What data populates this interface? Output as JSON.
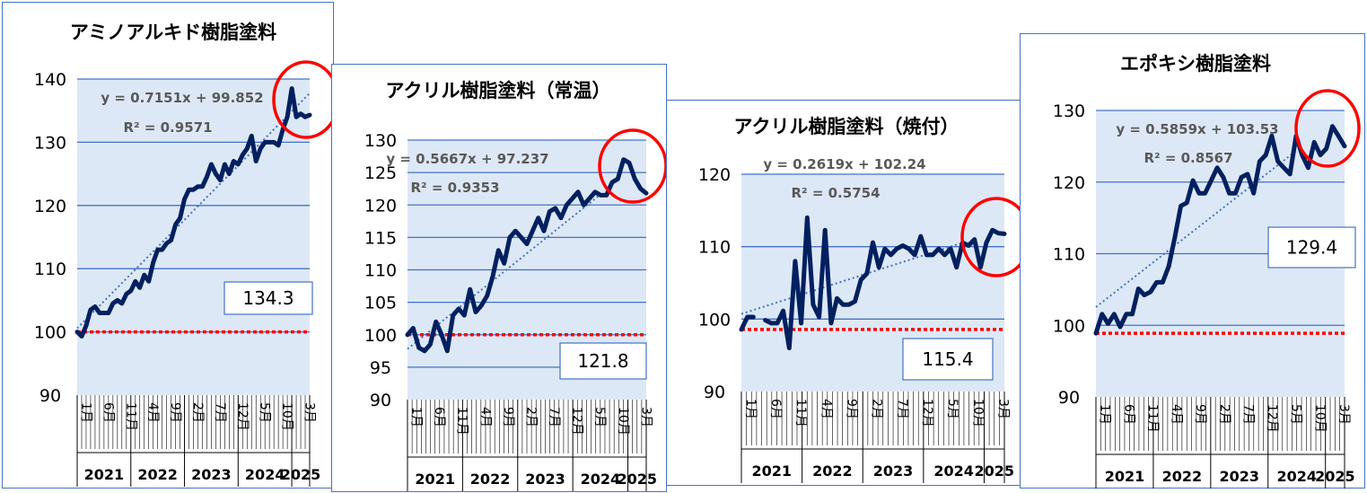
{
  "charts": [
    {
      "title": "アミノアルキド樹脂塗料",
      "yticks": [
        "140",
        "130",
        "120",
        "110",
        "100",
        "90"
      ],
      "months": [
        "1月",
        "6月",
        "11月",
        "4月",
        "9月",
        "2月",
        "7月",
        "12月",
        "5月",
        "10月",
        "3月"
      ],
      "years": [
        "2021",
        "2022",
        "2023",
        "2024",
        "2025"
      ],
      "equation": "y = 0.7151x + 99.852",
      "r2": "R² = 0.9571",
      "value_label": "134.3"
    },
    {
      "title": "アクリル樹脂塗料（常温）",
      "yticks": [
        "130",
        "125",
        "120",
        "115",
        "110",
        "105",
        "100",
        "95",
        "90"
      ],
      "months": [
        "1月",
        "6月",
        "11月",
        "4月",
        "9月",
        "2月",
        "7月",
        "12月",
        "5月",
        "10月",
        "3月"
      ],
      "years": [
        "2021",
        "2022",
        "2023",
        "2024",
        "2025"
      ],
      "equation": "y = 0.5667x + 97.237",
      "r2": "R² = 0.9353",
      "value_label": "121.8"
    },
    {
      "title": "アクリル樹脂塗料（焼付）",
      "yticks": [
        "120",
        "110",
        "100",
        "90"
      ],
      "months": [
        "1月",
        "6月",
        "11月",
        "4月",
        "9月",
        "2月",
        "7月",
        "12月",
        "5月",
        "10月",
        "3月"
      ],
      "years": [
        "2021",
        "2022",
        "2023",
        "2024",
        "2025"
      ],
      "equation": "y = 0.2619x + 102.24",
      "r2": "R² = 0.5754",
      "value_label": "115.4"
    },
    {
      "title": "エポキシ樹脂塗料",
      "yticks": [
        "130",
        "120",
        "110",
        "100",
        "90"
      ],
      "months": [
        "1月",
        "6月",
        "11月",
        "4月",
        "9月",
        "2月",
        "7月",
        "12月",
        "5月",
        "10月",
        "3月"
      ],
      "years": [
        "2021",
        "2022",
        "2023",
        "2024",
        "2025"
      ],
      "equation": "y = 0.5859x + 103.53",
      "r2": "R² = 0.8567",
      "value_label": "129.4"
    }
  ],
  "chart_data": [
    {
      "type": "line",
      "title": "アミノアルキド樹脂塗料",
      "x_start": "2021-01",
      "x_end": "2025-04",
      "ylim": [
        90,
        140
      ],
      "series": [
        {
          "values": [
            100,
            99.3,
            101,
            103.5,
            104,
            103,
            103,
            103,
            104.5,
            105,
            104.5,
            106,
            106.5,
            108,
            107,
            109,
            108,
            111,
            113,
            113,
            114,
            114.5,
            117,
            118,
            121,
            122.5,
            122.5,
            123,
            123,
            124.5,
            126.5,
            125,
            124,
            126.5,
            125,
            127,
            126.5,
            128,
            129,
            131,
            127,
            129,
            130,
            130,
            130,
            129.5,
            132,
            134,
            138.5,
            134,
            134.5,
            134,
            134.3
          ]
        }
      ],
      "trendline": {
        "slope": 0.7151,
        "intercept": 99.852
      },
      "baseline": 100,
      "colors": {
        "line": "#002060",
        "trend": "#4472c4",
        "baseline": "#ff0000",
        "highlight": "#ff0000",
        "plot_bg": "#dde8f6"
      }
    },
    {
      "type": "line",
      "title": "アクリル樹脂塗料（常温）",
      "x_start": "2021-01",
      "x_end": "2025-04",
      "ylim": [
        90,
        130
      ],
      "series": [
        {
          "values": [
            100,
            101,
            98,
            97.5,
            98.5,
            102,
            100,
            97.5,
            103,
            104,
            103,
            107,
            103.5,
            104.5,
            106,
            109,
            113,
            111,
            115,
            116,
            115,
            114,
            116,
            118,
            116,
            119,
            119.5,
            118,
            120,
            121,
            122,
            120,
            121,
            122,
            121.5,
            121.5,
            123.5,
            124,
            127,
            126.5,
            124,
            122.5,
            121.8
          ]
        }
      ],
      "trendline": {
        "slope": 0.5667,
        "intercept": 97.237
      },
      "baseline": 100,
      "colors": {
        "line": "#002060",
        "trend": "#4472c4",
        "baseline": "#ff0000",
        "highlight": "#ff0000",
        "plot_bg": "#dde8f6"
      }
    },
    {
      "type": "line",
      "title": "アクリル樹脂塗料（焼付）",
      "x_start": "2021-01",
      "x_end": "2025-04",
      "ylim": [
        90,
        125
      ],
      "series": [
        {
          "values": [
            100,
            102,
            102,
            null,
            101.5,
            101,
            101,
            103,
            97,
            111,
            101,
            118,
            104,
            102,
            116,
            101,
            105,
            104,
            104,
            104.5,
            108,
            109,
            114,
            110,
            113,
            112,
            113,
            113.5,
            113,
            112,
            115,
            112,
            112,
            113,
            112,
            113,
            110,
            114,
            113.5,
            114.5,
            110,
            114,
            116,
            115.5,
            115.4
          ]
        }
      ],
      "trendline": {
        "slope": 0.2619,
        "intercept": 102.24
      },
      "baseline": 100,
      "colors": {
        "line": "#002060",
        "trend": "#4472c4",
        "baseline": "#ff0000",
        "highlight": "#ff0000",
        "plot_bg": "#dde8f6"
      }
    },
    {
      "type": "line",
      "title": "エポキシ樹脂塗料",
      "x_start": "2021-01",
      "x_end": "2025-04",
      "ylim": [
        90,
        135
      ],
      "series": [
        {
          "values": [
            100,
            103,
            101.5,
            103,
            101,
            103,
            103,
            107,
            106,
            106.5,
            108,
            108,
            110.5,
            115,
            120,
            120.5,
            124,
            122,
            122,
            124,
            126,
            124.5,
            122,
            122,
            124.5,
            125,
            122,
            127,
            128,
            131,
            127,
            126,
            125,
            131,
            128,
            126,
            130,
            128,
            129,
            132.5,
            131,
            129.4
          ]
        }
      ],
      "trendline": {
        "slope": 0.5859,
        "intercept": 103.53
      },
      "baseline": 100,
      "colors": {
        "line": "#002060",
        "trend": "#4472c4",
        "baseline": "#ff0000",
        "highlight": "#ff0000",
        "plot_bg": "#dde8f6"
      }
    }
  ]
}
